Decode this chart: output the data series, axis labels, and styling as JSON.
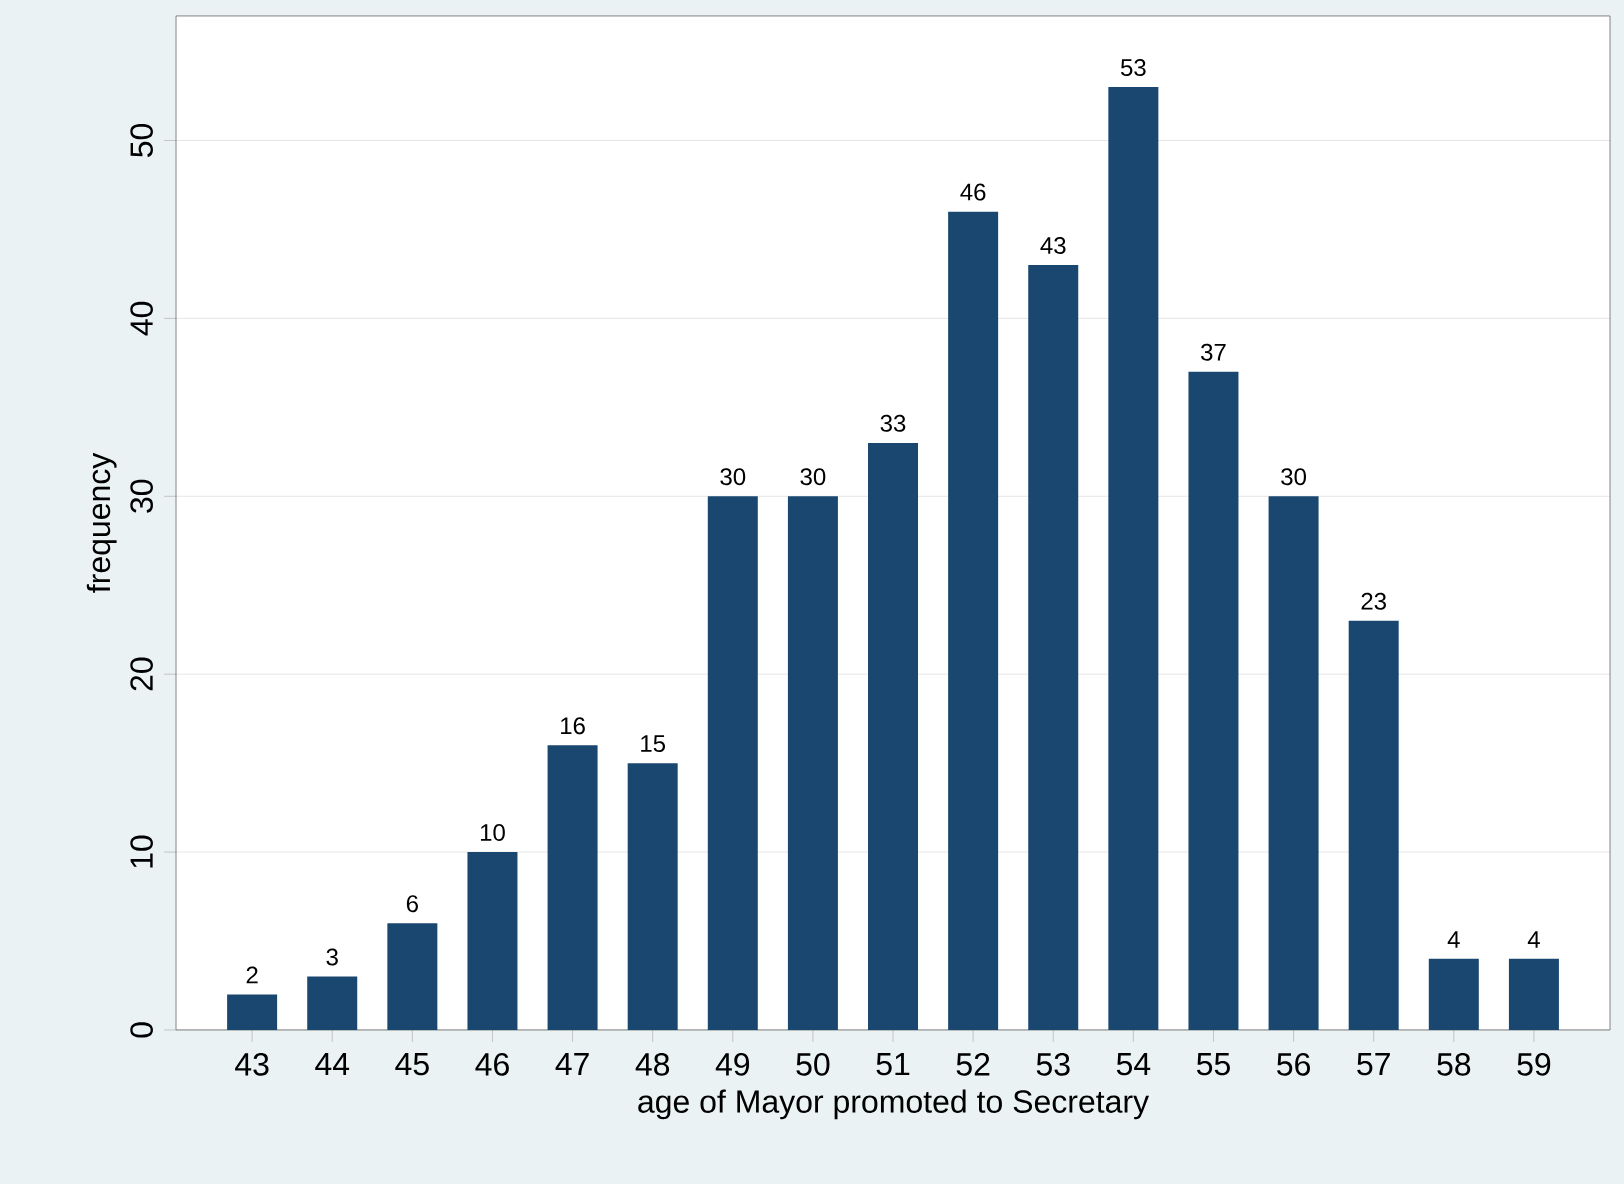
{
  "chart_data": {
    "type": "bar",
    "xlabel": "age of Mayor promoted to Secretary",
    "ylabel": "frequency",
    "categories": [
      "43",
      "44",
      "45",
      "46",
      "47",
      "48",
      "49",
      "50",
      "51",
      "52",
      "53",
      "54",
      "55",
      "56",
      "57",
      "58",
      "59"
    ],
    "values": [
      2,
      3,
      6,
      10,
      16,
      15,
      30,
      30,
      33,
      46,
      43,
      53,
      37,
      30,
      23,
      4,
      4
    ],
    "color": "#1a476f",
    "ylim": [
      0,
      57
    ],
    "yticks": [
      0,
      10,
      20,
      30,
      40,
      50
    ],
    "grid": "y",
    "data_labels": true
  }
}
